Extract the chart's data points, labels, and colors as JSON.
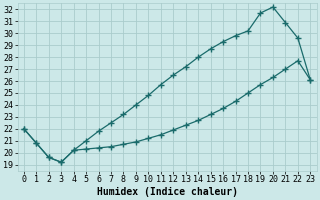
{
  "xlabel": "Humidex (Indice chaleur)",
  "background_color": "#cce8e8",
  "grid_color": "#aacccc",
  "line_color": "#1a6b6b",
  "xlim": [
    -0.5,
    23.5
  ],
  "ylim": [
    18.5,
    32.5
  ],
  "xticks": [
    0,
    1,
    2,
    3,
    4,
    5,
    6,
    7,
    8,
    9,
    10,
    11,
    12,
    13,
    14,
    15,
    16,
    17,
    18,
    19,
    20,
    21,
    22,
    23
  ],
  "yticks": [
    19,
    20,
    21,
    22,
    23,
    24,
    25,
    26,
    27,
    28,
    29,
    30,
    31,
    32
  ],
  "line1_x": [
    0,
    1,
    2,
    3,
    4,
    5,
    6,
    7,
    8,
    9,
    10,
    11,
    12,
    13,
    14,
    15,
    16,
    17,
    18,
    19,
    20,
    21,
    22,
    23
  ],
  "line1_y": [
    22.0,
    20.8,
    19.6,
    19.2,
    20.2,
    20.3,
    20.4,
    20.5,
    20.7,
    20.9,
    21.2,
    21.5,
    21.9,
    22.3,
    22.7,
    23.2,
    23.7,
    24.3,
    25.0,
    25.7,
    26.3,
    27.0,
    27.7,
    26.1
  ],
  "line2_x": [
    0,
    1,
    2,
    3,
    4,
    5,
    6,
    7,
    8,
    9,
    10,
    11,
    12,
    13,
    14,
    15,
    16,
    17,
    18,
    19,
    20,
    21,
    22,
    23
  ],
  "line2_y": [
    22.0,
    20.8,
    19.6,
    19.2,
    20.2,
    21.0,
    21.8,
    22.5,
    23.2,
    24.0,
    24.8,
    25.7,
    26.5,
    27.2,
    28.0,
    28.7,
    29.3,
    29.8,
    30.2,
    31.7,
    32.2,
    30.9,
    29.6,
    26.1
  ],
  "marker": "+",
  "markersize": 4,
  "markeredgewidth": 1.0,
  "linewidth": 0.9,
  "fontsize_ticks": 6,
  "fontsize_xlabel": 7
}
